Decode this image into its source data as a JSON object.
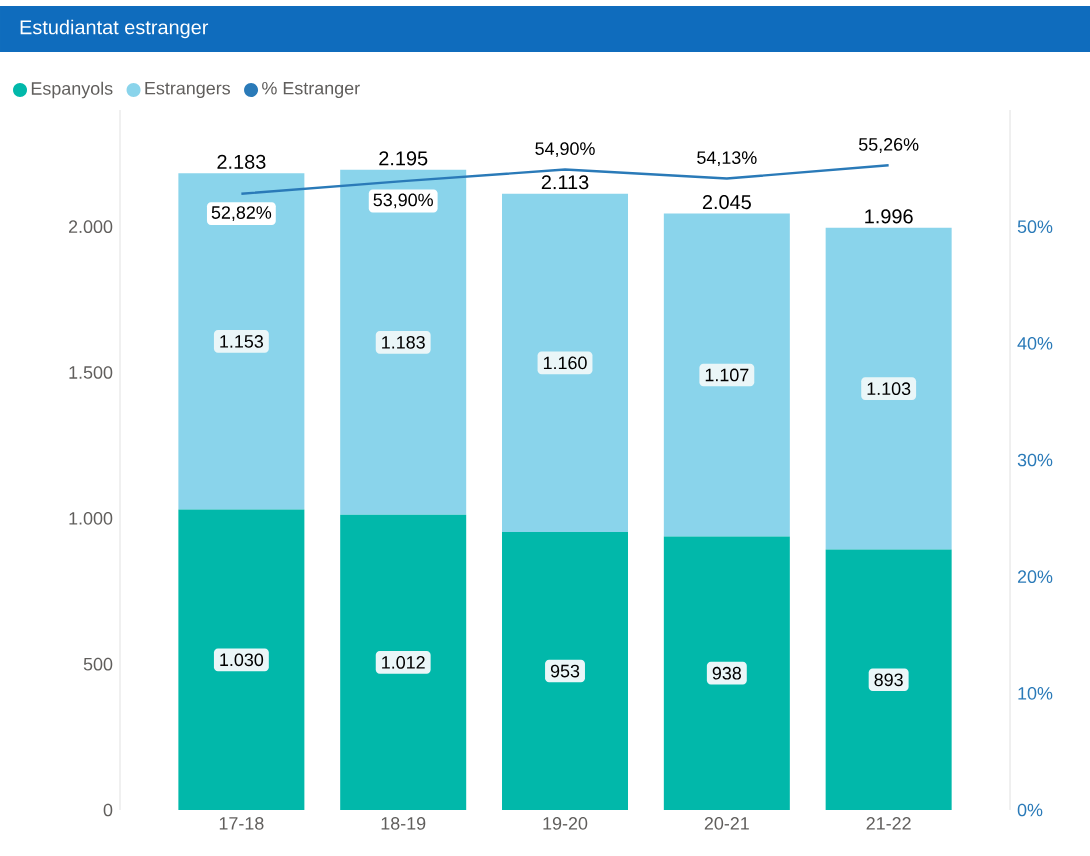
{
  "chart_data": {
    "type": "bar",
    "title": "Estudiantat estranger",
    "categories": [
      "17-18",
      "18-19",
      "19-20",
      "20-21",
      "21-22"
    ],
    "stacked": true,
    "legend": "top left",
    "ylim": [
      0,
      2400
    ],
    "yticks": [
      0,
      500,
      {
        "value": 1000,
        "label": "1.000"
      },
      {
        "value": 1500,
        "label": "1.500"
      },
      {
        "value": 2000,
        "label": "2.000"
      }
    ],
    "y2lim": [
      0,
      60
    ],
    "y2ticks": [
      {
        "value": 0,
        "label": "0%"
      },
      {
        "value": 10,
        "label": "10%"
      },
      {
        "value": 20,
        "label": "20%"
      },
      {
        "value": 30,
        "label": "30%"
      },
      {
        "value": 40,
        "label": "40%"
      },
      {
        "value": 50,
        "label": "50%"
      }
    ],
    "series": [
      {
        "name": "Espanyols",
        "color": "#01b8aa",
        "values": [
          1030,
          1012,
          953,
          938,
          893
        ],
        "value_labels": [
          "1.030",
          "1.012",
          "953",
          "938",
          "893"
        ]
      },
      {
        "name": "Estrangers",
        "color": "#8ad4eb",
        "values": [
          1153,
          1183,
          1160,
          1107,
          1103
        ],
        "value_labels": [
          "1.153",
          "1.183",
          "1.160",
          "1.107",
          "1.103"
        ]
      },
      {
        "name": "% Estranger",
        "type": "line",
        "axis": "y2",
        "color": "#2a7ab8",
        "values": [
          52.82,
          53.9,
          54.9,
          54.13,
          55.26
        ],
        "value_labels": [
          "52,82%",
          "53,90%",
          "54,90%",
          "54,13%",
          "55,26%"
        ]
      }
    ],
    "totals": [
      "2.183",
      "2.195",
      "2.113",
      "2.045",
      "1.996"
    ]
  }
}
